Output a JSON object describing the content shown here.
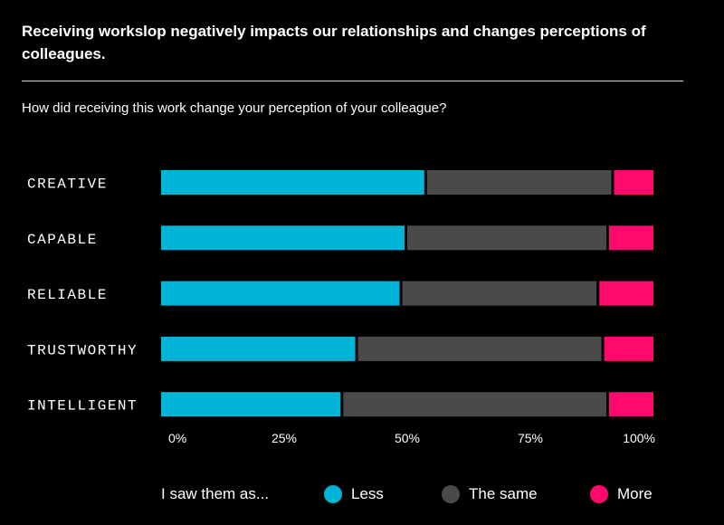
{
  "header": {
    "title": "Receiving workslop negatively impacts our relationships and changes perceptions of colleagues.",
    "subtitle": "How did receiving this work change your perception of your colleague?"
  },
  "chart_data": {
    "type": "bar",
    "orientation": "horizontal",
    "stacked": true,
    "normalized": true,
    "title": "Receiving workslop negatively impacts our relationships and changes perceptions of colleagues.",
    "subtitle": "How did receiving this work change your perception of your colleague?",
    "categories": [
      "CREATIVE",
      "CAPABLE",
      "RELIABLE",
      "TRUSTWORTHY",
      "INTELLIGENT"
    ],
    "series": [
      {
        "name": "Less",
        "color": "#00b4d8",
        "values": [
          54,
          50,
          49,
          40,
          37
        ]
      },
      {
        "name": "The same",
        "color": "#4a4a4a",
        "values": [
          38,
          41,
          40,
          50,
          54
        ]
      },
      {
        "name": "More",
        "color": "#ff0a6c",
        "values": [
          8,
          9,
          11,
          10,
          9
        ]
      }
    ],
    "x_ticks": [
      "0%",
      "25%",
      "50%",
      "75%",
      "100%"
    ],
    "x_tick_values": [
      0,
      25,
      50,
      75,
      100
    ],
    "xlim": [
      0,
      100
    ],
    "xlabel": "",
    "ylabel": "",
    "grid": false,
    "legend_position": "bottom"
  },
  "legend": {
    "prefix": "I saw them as...",
    "items": [
      {
        "label": "Less",
        "color": "#00b4d8"
      },
      {
        "label": "The same",
        "color": "#4a4a4a"
      },
      {
        "label": "More",
        "color": "#ff0a6c"
      }
    ]
  }
}
